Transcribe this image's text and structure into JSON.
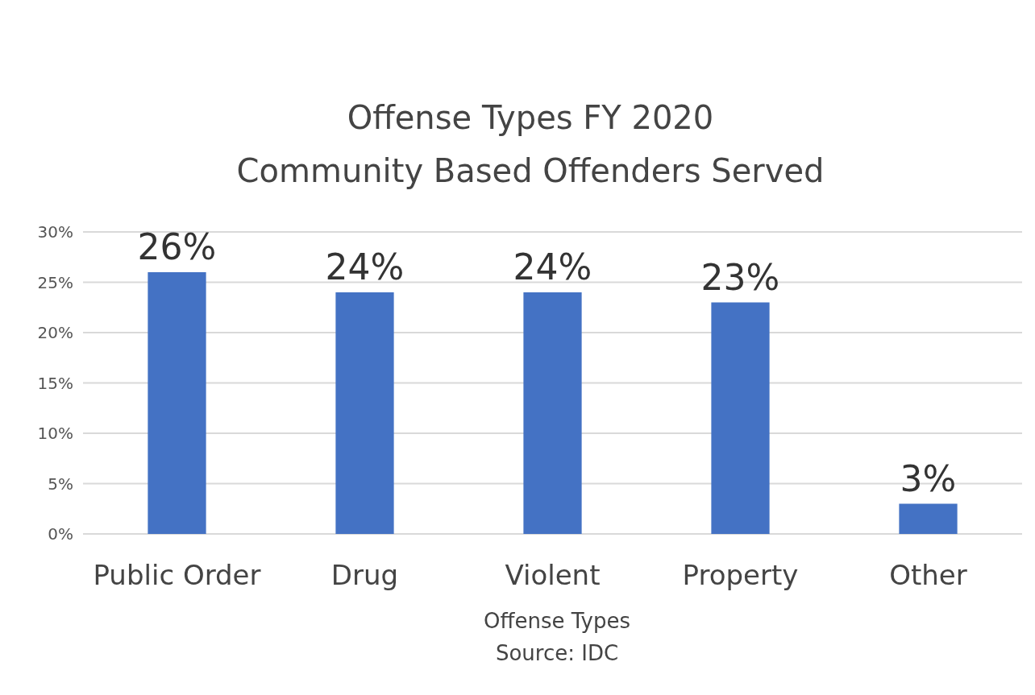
{
  "chart_data": {
    "type": "bar",
    "title": "Offense Types FY 2020",
    "subtitle": "Community Based Offenders Served",
    "xlabel": "Offense Types",
    "annotations": [
      "Source: IDC"
    ],
    "categories": [
      "Public Order",
      "Drug",
      "Violent",
      "Property",
      "Other"
    ],
    "values": [
      26,
      24,
      24,
      23,
      3
    ],
    "color": "#4472c4",
    "value_labels": [
      "26%",
      "24%",
      "24%",
      "23%",
      "3%"
    ],
    "ylim": [
      0,
      30
    ],
    "yticks": [
      {
        "value": 0,
        "label": "0%"
      },
      {
        "value": 5,
        "label": "5%"
      },
      {
        "value": 10,
        "label": "10%"
      },
      {
        "value": 15,
        "label": "15%"
      },
      {
        "value": 20,
        "label": "20%"
      },
      {
        "value": 25,
        "label": "25%"
      },
      {
        "value": 30,
        "label": "30%"
      }
    ],
    "grid": "y"
  }
}
